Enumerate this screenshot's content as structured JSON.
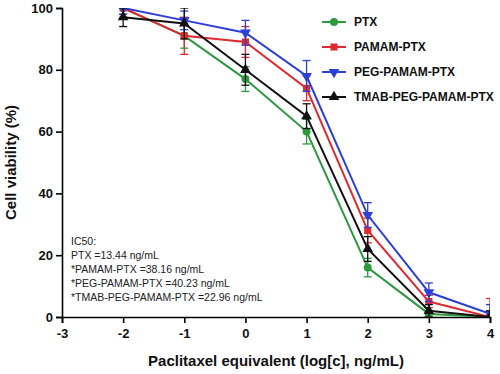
{
  "chart_data": {
    "type": "line",
    "x_label": "Paclitaxel equivalent (log[c], ng/mL)",
    "y_label": "Cell viability (%)",
    "x": [
      -2,
      -1,
      0,
      1,
      2,
      3,
      4
    ],
    "series": [
      {
        "name": "PTX",
        "color": "#2a9a3c",
        "marker": "circle",
        "values": [
          100,
          91,
          77,
          60,
          16,
          1,
          0
        ],
        "errors": [
          3,
          4,
          4,
          4,
          3,
          1,
          1
        ]
      },
      {
        "name": "PAMAM-PTX",
        "color": "#e02a2f",
        "marker": "square",
        "values": [
          100,
          91,
          89,
          74,
          28,
          5,
          0
        ],
        "errors": [
          2,
          6,
          5,
          4,
          4,
          2,
          6
        ]
      },
      {
        "name": "PEG-PAMAM-PTX",
        "color": "#2c3fd8",
        "marker": "triangle-down",
        "values": [
          100,
          96,
          92,
          78,
          33,
          8,
          1
        ],
        "errors": [
          2,
          3,
          4,
          5,
          4,
          3,
          3
        ]
      },
      {
        "name": "TMAB-PEG-PAMAM-PTX",
        "color": "#111111",
        "marker": "triangle",
        "values": [
          97,
          95,
          80,
          65,
          22,
          2,
          0
        ],
        "errors": [
          3,
          5,
          5,
          4,
          4,
          2,
          2
        ]
      }
    ],
    "annotations": [
      "IC50:",
      "PTX =13.44 ng/mL",
      "*PAMAM-PTX =38.16 ng/mL",
      "*PEG-PAMAM-PTX =40.23 ng/mL",
      "*TMAB-PEG-PAMAM-PTX =22.96 ng/mL"
    ],
    "xlim": [
      -3,
      4
    ],
    "xticks": [
      -3,
      -2,
      -1,
      0,
      1,
      2,
      3,
      4
    ],
    "ylim": [
      0,
      100
    ],
    "yticks": [
      0,
      20,
      40,
      60,
      80,
      100
    ],
    "grid": false,
    "legend": "top-right"
  }
}
